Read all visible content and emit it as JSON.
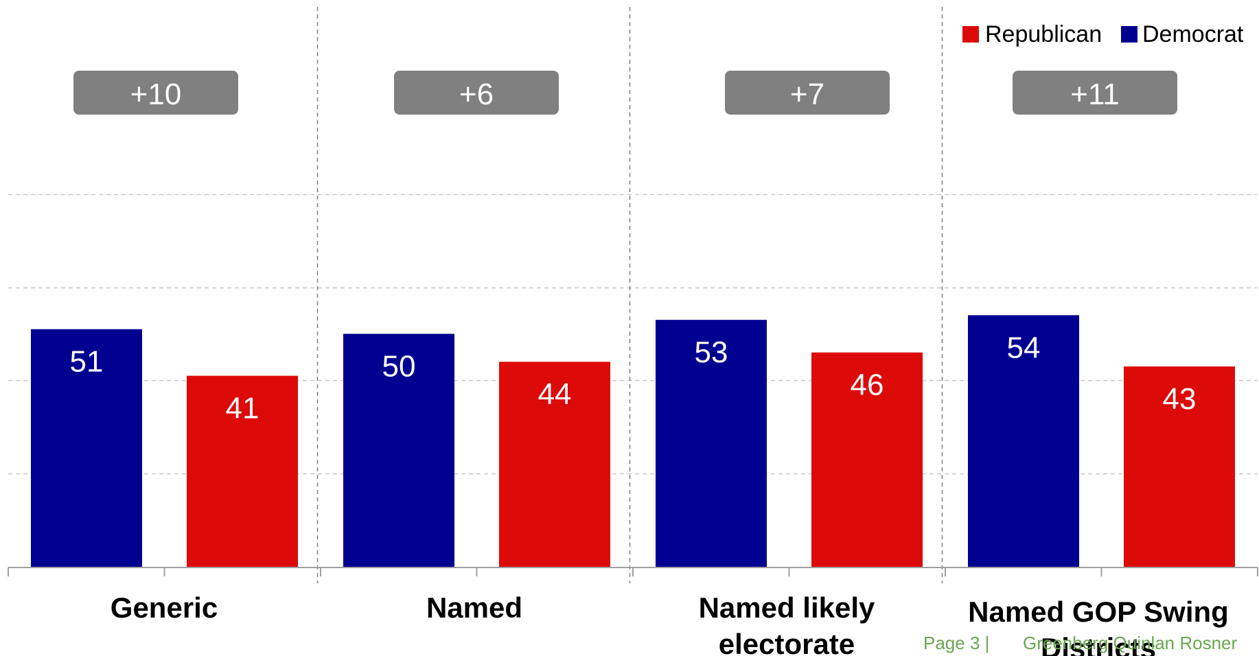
{
  "chart_data": {
    "type": "bar",
    "categories": [
      [
        "Generic"
      ],
      [
        "Named"
      ],
      [
        "Named likely",
        "electorate"
      ],
      [
        "Named GOP Swing",
        "Districts"
      ]
    ],
    "series": [
      {
        "name": "Democrat",
        "color": "#000090",
        "values": [
          51,
          50,
          53,
          54
        ]
      },
      {
        "name": "Republican",
        "color": "#dd0a0a",
        "values": [
          41,
          44,
          46,
          43
        ]
      }
    ],
    "differences": [
      "+10",
      "+6",
      "+7",
      "+11"
    ],
    "difference_box_color": "#808080",
    "legend": [
      {
        "label": "Republican",
        "color": "#dd0a0a"
      },
      {
        "label": "Democrat",
        "color": "#000090"
      }
    ],
    "legend_position": "top-right",
    "ylim": [
      0,
      80
    ],
    "grid": true
  },
  "footer": {
    "page": "Page 3 |",
    "firm": "Greenberg Quinlan Rosner"
  }
}
